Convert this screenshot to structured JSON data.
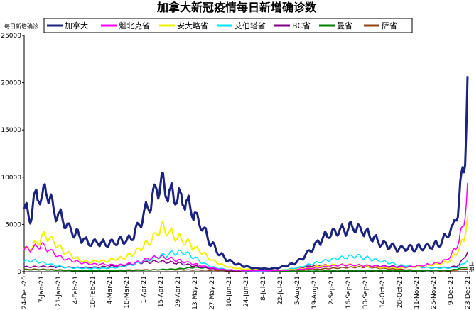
{
  "chart_data": {
    "type": "line",
    "title": "加拿大新冠疫情每日新增确诊数",
    "ylabel": "每日新增确诊",
    "xlabel_right": "日期",
    "ylim": [
      0,
      25000
    ],
    "yticks": [
      0,
      5000,
      10000,
      15000,
      20000,
      25000
    ],
    "x_range": [
      "2020-12-24",
      "2021-12-23"
    ],
    "x_ticks": [
      "24-Dec-20",
      "7-Jan-21",
      "21-Jan-21",
      "4-Feb-21",
      "18-Feb-21",
      "4-Mar-21",
      "18-Mar-21",
      "1-Apr-21",
      "15-Apr-21",
      "29-Apr-21",
      "13-May-21",
      "27-May-21",
      "10-Jun-21",
      "24-Jun-21",
      "8-Jul-21",
      "22-Jul-21",
      "5-Aug-21",
      "19-Aug-21",
      "2-Sep-21",
      "16-Sep-21",
      "30-Sep-21",
      "14-Oct-21",
      "28-Oct-21",
      "11-Nov-21",
      "25-Nov-21",
      "9-Dec-21",
      "23-Dec-21"
    ],
    "legend_position": "top",
    "grid": false,
    "series": [
      {
        "name": "加拿大",
        "color": "#1a237e",
        "width": 3,
        "points": [
          [
            "2020-12-24",
            6800
          ],
          [
            "2020-12-29",
            5600
          ],
          [
            "2021-01-03",
            8400
          ],
          [
            "2021-01-08",
            7500
          ],
          [
            "2021-01-11",
            9000
          ],
          [
            "2021-01-18",
            6200
          ],
          [
            "2021-01-25",
            5600
          ],
          [
            "2021-02-01",
            4300
          ],
          [
            "2021-02-08",
            3700
          ],
          [
            "2021-02-15",
            3000
          ],
          [
            "2021-02-22",
            3100
          ],
          [
            "2021-03-01",
            2900
          ],
          [
            "2021-03-08",
            3100
          ],
          [
            "2021-03-15",
            3300
          ],
          [
            "2021-03-22",
            3500
          ],
          [
            "2021-03-29",
            5200
          ],
          [
            "2021-04-05",
            6900
          ],
          [
            "2021-04-12",
            8700
          ],
          [
            "2021-04-16",
            9400
          ],
          [
            "2021-04-20",
            8500
          ],
          [
            "2021-04-27",
            8000
          ],
          [
            "2021-05-04",
            7600
          ],
          [
            "2021-05-11",
            6500
          ],
          [
            "2021-05-18",
            4900
          ],
          [
            "2021-05-25",
            3300
          ],
          [
            "2021-06-01",
            2100
          ],
          [
            "2021-06-08",
            1300
          ],
          [
            "2021-06-15",
            900
          ],
          [
            "2021-06-22",
            600
          ],
          [
            "2021-06-29",
            400
          ],
          [
            "2021-07-06",
            350
          ],
          [
            "2021-07-13",
            300
          ],
          [
            "2021-07-20",
            400
          ],
          [
            "2021-07-27",
            600
          ],
          [
            "2021-08-03",
            900
          ],
          [
            "2021-08-10",
            1500
          ],
          [
            "2021-08-17",
            2500
          ],
          [
            "2021-08-24",
            3300
          ],
          [
            "2021-08-31",
            4000
          ],
          [
            "2021-09-07",
            4200
          ],
          [
            "2021-09-14",
            4500
          ],
          [
            "2021-09-21",
            4700
          ],
          [
            "2021-09-28",
            4300
          ],
          [
            "2021-10-05",
            3800
          ],
          [
            "2021-10-12",
            3000
          ],
          [
            "2021-10-19",
            2800
          ],
          [
            "2021-10-26",
            2500
          ],
          [
            "2021-11-02",
            2500
          ],
          [
            "2021-11-09",
            2500
          ],
          [
            "2021-11-16",
            2600
          ],
          [
            "2021-11-23",
            2700
          ],
          [
            "2021-11-30",
            3000
          ],
          [
            "2021-12-07",
            4000
          ],
          [
            "2021-12-11",
            4600
          ],
          [
            "2021-12-15",
            6500
          ],
          [
            "2021-12-18",
            9500
          ],
          [
            "2021-12-21",
            12500
          ],
          [
            "2021-12-23",
            20700
          ]
        ]
      },
      {
        "name": "魁北克省",
        "color": "#ff00ff",
        "width": 1.5,
        "points": [
          [
            "2020-12-24",
            2300
          ],
          [
            "2020-12-31",
            2500
          ],
          [
            "2021-01-07",
            2800
          ],
          [
            "2021-01-14",
            2300
          ],
          [
            "2021-01-21",
            1600
          ],
          [
            "2021-01-28",
            1300
          ],
          [
            "2021-02-04",
            1100
          ],
          [
            "2021-02-11",
            900
          ],
          [
            "2021-02-18",
            800
          ],
          [
            "2021-02-25",
            800
          ],
          [
            "2021-03-04",
            700
          ],
          [
            "2021-03-11",
            700
          ],
          [
            "2021-03-18",
            800
          ],
          [
            "2021-03-25",
            900
          ],
          [
            "2021-04-01",
            1200
          ],
          [
            "2021-04-08",
            1500
          ],
          [
            "2021-04-15",
            1600
          ],
          [
            "2021-04-22",
            1400
          ],
          [
            "2021-04-29",
            1200
          ],
          [
            "2021-05-06",
            1000
          ],
          [
            "2021-05-13",
            800
          ],
          [
            "2021-05-20",
            600
          ],
          [
            "2021-05-27",
            400
          ],
          [
            "2021-06-03",
            250
          ],
          [
            "2021-06-17",
            150
          ],
          [
            "2021-07-01",
            100
          ],
          [
            "2021-07-15",
            100
          ],
          [
            "2021-07-29",
            150
          ],
          [
            "2021-08-12",
            300
          ],
          [
            "2021-08-26",
            500
          ],
          [
            "2021-09-09",
            700
          ],
          [
            "2021-09-23",
            700
          ],
          [
            "2021-10-07",
            600
          ],
          [
            "2021-10-21",
            500
          ],
          [
            "2021-11-04",
            500
          ],
          [
            "2021-11-18",
            700
          ],
          [
            "2021-12-02",
            1000
          ],
          [
            "2021-12-09",
            1600
          ],
          [
            "2021-12-16",
            3300
          ],
          [
            "2021-12-20",
            5000
          ],
          [
            "2021-12-23",
            9400
          ]
        ]
      },
      {
        "name": "安大略省",
        "color": "#f2f200",
        "width": 2,
        "points": [
          [
            "2020-12-24",
            2300
          ],
          [
            "2020-12-31",
            2700
          ],
          [
            "2021-01-07",
            3500
          ],
          [
            "2021-01-11",
            3900
          ],
          [
            "2021-01-18",
            3000
          ],
          [
            "2021-01-25",
            2300
          ],
          [
            "2021-02-01",
            1700
          ],
          [
            "2021-02-08",
            1200
          ],
          [
            "2021-02-15",
            1000
          ],
          [
            "2021-02-22",
            1100
          ],
          [
            "2021-03-01",
            1100
          ],
          [
            "2021-03-08",
            1300
          ],
          [
            "2021-03-15",
            1500
          ],
          [
            "2021-03-22",
            1800
          ],
          [
            "2021-03-29",
            2400
          ],
          [
            "2021-04-05",
            3100
          ],
          [
            "2021-04-12",
            4000
          ],
          [
            "2021-04-16",
            4700
          ],
          [
            "2021-04-22",
            4200
          ],
          [
            "2021-04-29",
            3600
          ],
          [
            "2021-05-06",
            3200
          ],
          [
            "2021-05-13",
            2500
          ],
          [
            "2021-05-20",
            2000
          ],
          [
            "2021-05-27",
            1200
          ],
          [
            "2021-06-03",
            800
          ],
          [
            "2021-06-10",
            500
          ],
          [
            "2021-06-17",
            350
          ],
          [
            "2021-06-24",
            250
          ],
          [
            "2021-07-08",
            200
          ],
          [
            "2021-07-22",
            150
          ],
          [
            "2021-08-05",
            250
          ],
          [
            "2021-08-19",
            500
          ],
          [
            "2021-09-02",
            700
          ],
          [
            "2021-09-16",
            750
          ],
          [
            "2021-09-30",
            600
          ],
          [
            "2021-10-14",
            450
          ],
          [
            "2021-10-28",
            400
          ],
          [
            "2021-11-11",
            550
          ],
          [
            "2021-11-25",
            750
          ],
          [
            "2021-12-02",
            900
          ],
          [
            "2021-12-09",
            1200
          ],
          [
            "2021-12-16",
            2400
          ],
          [
            "2021-12-20",
            3500
          ],
          [
            "2021-12-23",
            5800
          ]
        ]
      },
      {
        "name": "艾伯塔省",
        "color": "#00e5ff",
        "width": 1.5,
        "points": [
          [
            "2020-12-24",
            1100
          ],
          [
            "2020-12-31",
            1200
          ],
          [
            "2021-01-07",
            1000
          ],
          [
            "2021-01-14",
            800
          ],
          [
            "2021-01-21",
            600
          ],
          [
            "2021-01-28",
            450
          ],
          [
            "2021-02-11",
            350
          ],
          [
            "2021-02-25",
            350
          ],
          [
            "2021-03-11",
            450
          ],
          [
            "2021-03-25",
            800
          ],
          [
            "2021-04-08",
            1400
          ],
          [
            "2021-04-22",
            1900
          ],
          [
            "2021-04-29",
            2100
          ],
          [
            "2021-05-06",
            2000
          ],
          [
            "2021-05-13",
            1500
          ],
          [
            "2021-05-20",
            900
          ],
          [
            "2021-05-27",
            500
          ],
          [
            "2021-06-10",
            200
          ],
          [
            "2021-06-24",
            100
          ],
          [
            "2021-07-08",
            50
          ],
          [
            "2021-07-22",
            150
          ],
          [
            "2021-08-05",
            400
          ],
          [
            "2021-08-19",
            900
          ],
          [
            "2021-09-02",
            1300
          ],
          [
            "2021-09-16",
            1600
          ],
          [
            "2021-09-23",
            1700
          ],
          [
            "2021-09-30",
            1500
          ],
          [
            "2021-10-14",
            1100
          ],
          [
            "2021-10-28",
            700
          ],
          [
            "2021-11-11",
            500
          ],
          [
            "2021-11-25",
            400
          ],
          [
            "2021-12-09",
            400
          ],
          [
            "2021-12-16",
            500
          ],
          [
            "2021-12-23",
            1200
          ]
        ]
      },
      {
        "name": "BC省",
        "color": "#800080",
        "width": 1.5,
        "points": [
          [
            "2020-12-24",
            500
          ],
          [
            "2021-01-07",
            550
          ],
          [
            "2021-01-21",
            500
          ],
          [
            "2021-02-04",
            450
          ],
          [
            "2021-02-18",
            450
          ],
          [
            "2021-03-04",
            550
          ],
          [
            "2021-03-18",
            700
          ],
          [
            "2021-04-01",
            1000
          ],
          [
            "2021-04-15",
            1100
          ],
          [
            "2021-04-29",
            900
          ],
          [
            "2021-05-13",
            600
          ],
          [
            "2021-05-27",
            300
          ],
          [
            "2021-06-10",
            150
          ],
          [
            "2021-06-24",
            60
          ],
          [
            "2021-07-08",
            50
          ],
          [
            "2021-07-22",
            150
          ],
          [
            "2021-08-05",
            400
          ],
          [
            "2021-08-19",
            650
          ],
          [
            "2021-09-02",
            700
          ],
          [
            "2021-09-16",
            700
          ],
          [
            "2021-09-30",
            650
          ],
          [
            "2021-10-14",
            600
          ],
          [
            "2021-10-28",
            550
          ],
          [
            "2021-11-11",
            500
          ],
          [
            "2021-11-25",
            400
          ],
          [
            "2021-12-09",
            450
          ],
          [
            "2021-12-16",
            700
          ],
          [
            "2021-12-23",
            2100
          ]
        ]
      },
      {
        "name": "曼省",
        "color": "#008000",
        "width": 1.5,
        "points": [
          [
            "2020-12-24",
            200
          ],
          [
            "2021-01-07",
            200
          ],
          [
            "2021-01-21",
            150
          ],
          [
            "2021-02-04",
            100
          ],
          [
            "2021-03-04",
            80
          ],
          [
            "2021-04-01",
            150
          ],
          [
            "2021-04-29",
            300
          ],
          [
            "2021-05-13",
            450
          ],
          [
            "2021-05-27",
            350
          ],
          [
            "2021-06-10",
            200
          ],
          [
            "2021-06-24",
            80
          ],
          [
            "2021-07-22",
            50
          ],
          [
            "2021-08-19",
            70
          ],
          [
            "2021-09-16",
            100
          ],
          [
            "2021-10-14",
            100
          ],
          [
            "2021-11-11",
            100
          ],
          [
            "2021-12-09",
            150
          ],
          [
            "2021-12-23",
            500
          ]
        ]
      },
      {
        "name": "萨省",
        "color": "#8b4513",
        "width": 1.5,
        "points": [
          [
            "2020-12-24",
            250
          ],
          [
            "2021-01-07",
            250
          ],
          [
            "2021-01-21",
            200
          ],
          [
            "2021-02-04",
            150
          ],
          [
            "2021-03-04",
            150
          ],
          [
            "2021-04-01",
            200
          ],
          [
            "2021-04-29",
            200
          ],
          [
            "2021-05-27",
            150
          ],
          [
            "2021-06-24",
            50
          ],
          [
            "2021-07-22",
            50
          ],
          [
            "2021-08-19",
            250
          ],
          [
            "2021-09-16",
            450
          ],
          [
            "2021-09-30",
            500
          ],
          [
            "2021-10-14",
            350
          ],
          [
            "2021-11-11",
            150
          ],
          [
            "2021-12-09",
            100
          ],
          [
            "2021-12-23",
            300
          ]
        ]
      }
    ]
  }
}
